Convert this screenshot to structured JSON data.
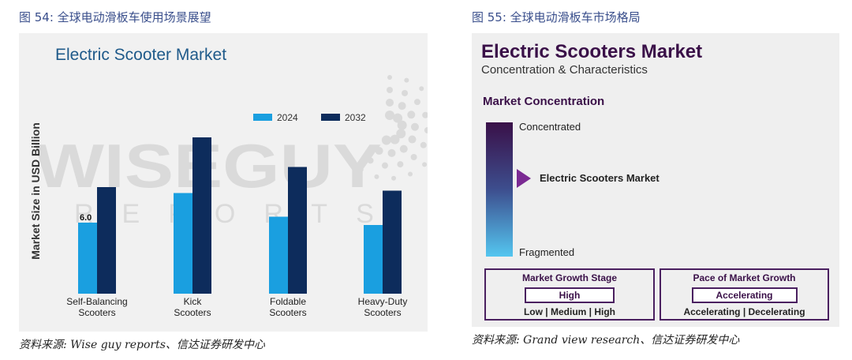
{
  "captions": {
    "left": "图 54:  全球电动滑板车使用场景展望",
    "right": "图 55:  全球电动滑板车市场格局"
  },
  "sources": {
    "left": "资料来源:  Wise guy reports、信达证券研发中心",
    "right": "资料来源:  Grand view research、信达证券研发中心"
  },
  "chart_data": {
    "type": "bar",
    "title": "Electric Scooter Market",
    "xlabel": "",
    "ylabel": "Market Size in USD Billion",
    "categories": [
      "Self-Balancing Scooters",
      "Kick Scooters",
      "Foldable Scooters",
      "Heavy-Duty Scooters"
    ],
    "category_lines": [
      [
        "Self-Balancing",
        "Scooters"
      ],
      [
        "Kick",
        "Scooters"
      ],
      [
        "Foldable",
        "Scooters"
      ],
      [
        "Heavy-Duty",
        "Scooters"
      ]
    ],
    "series": [
      {
        "name": "2024",
        "values": [
          6.0,
          8.5,
          6.5,
          5.8
        ],
        "color": "#1a9fe0"
      },
      {
        "name": "2032",
        "values": [
          9.0,
          13.2,
          10.7,
          8.7
        ],
        "color": "#0d2c5c"
      }
    ],
    "data_labels": [
      {
        "series": "2024",
        "category": "Self-Balancing Scooters",
        "text": "6.0"
      }
    ],
    "ylim": [
      0,
      15
    ],
    "grid": false,
    "legend_position": "top-right",
    "watermark": "WISE GUY REPORTS"
  },
  "market_panel": {
    "title": "Electric Scooters Market",
    "subtitle": "Concentration & Characteristics",
    "concentration_title": "Market Concentration",
    "scale_top": "Concentrated",
    "scale_bottom": "Fragmented",
    "marker_label": "Electric Scooters Market",
    "marker_level": 0.42,
    "gradient_colors": [
      "#3a1048",
      "#3d4e8e",
      "#54c6f0"
    ],
    "arrow_color": "#7b2a93",
    "growth_stage": {
      "title": "Market Growth Stage",
      "value": "High",
      "scale": "Low  |  Medium  |  High"
    },
    "growth_pace": {
      "title": "Pace of Market Growth",
      "value": "Accelerating",
      "scale": "Accelerating  |  Decelerating"
    }
  }
}
